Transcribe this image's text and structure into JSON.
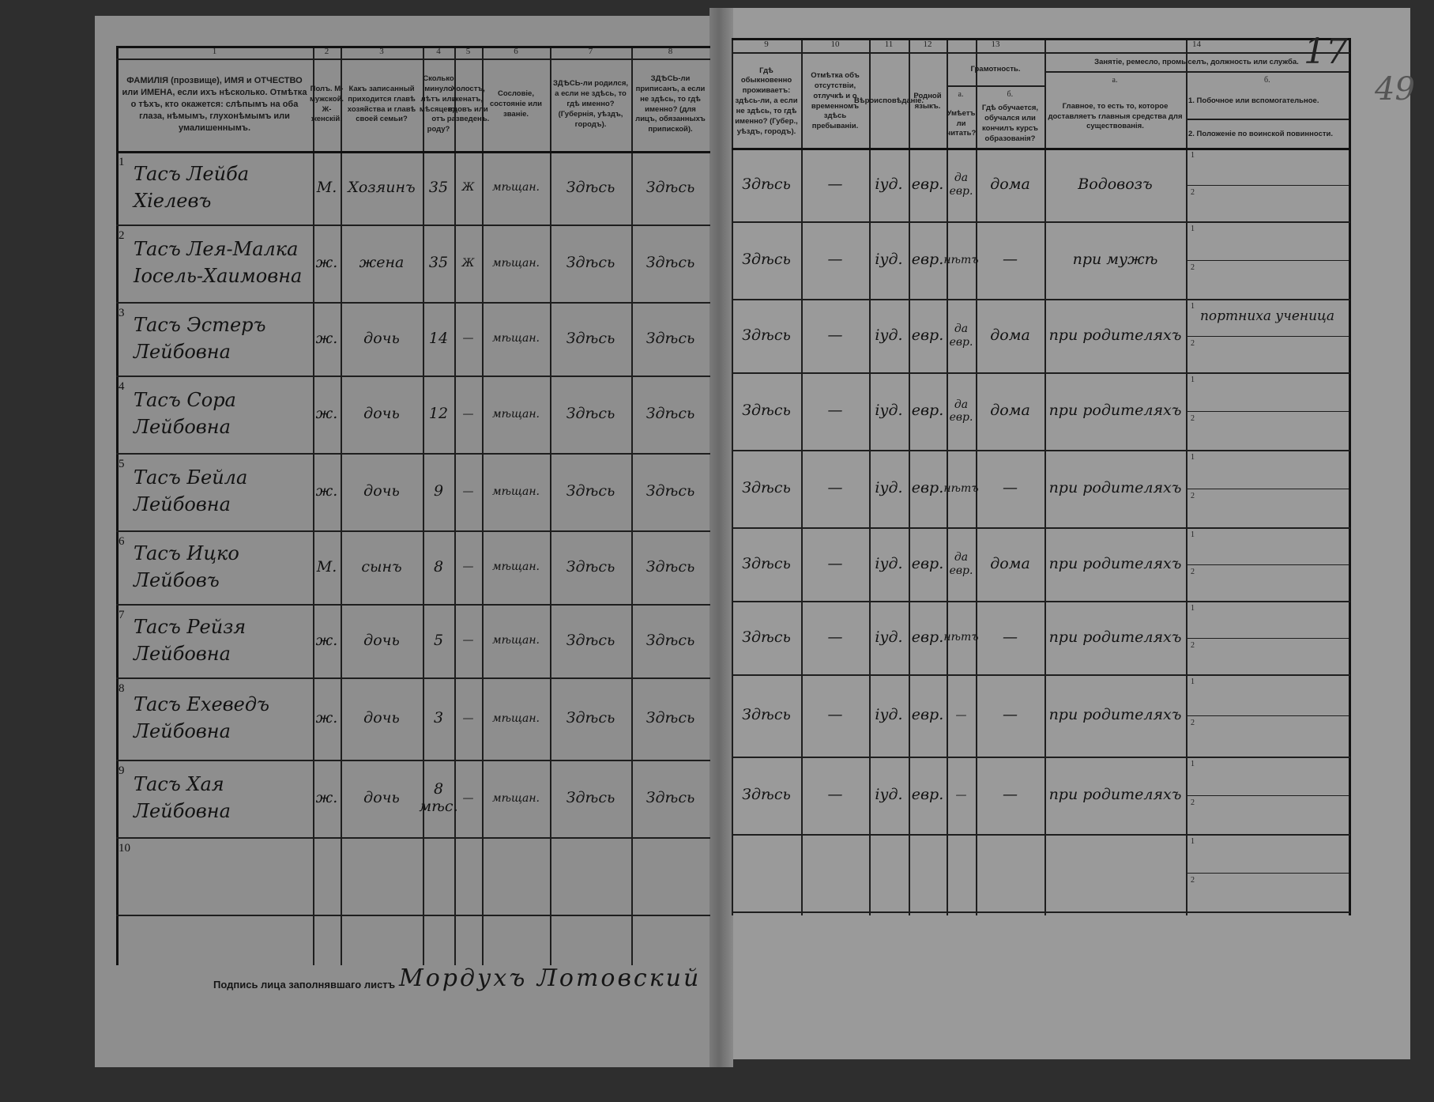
{
  "document": {
    "page_number": "17",
    "pencil_number": "49",
    "signature_label": "Подпись лица заполнявшаго листъ",
    "signature": "Мордухъ Лотовский"
  },
  "headers": [
    {
      "num": "1",
      "text": "ФАМИЛІЯ (прозвище), ИМЯ и ОТЧЕСТВО или ИМЕНА, если ихъ нѣсколько. Отмѣтка о тѣхъ, кто окажется: слѣпымъ на оба глаза, нѣмымъ, глухонѣмымъ или умалишеннымъ."
    },
    {
      "num": "2",
      "text": "Полъ. М-мужской. Ж-женскій."
    },
    {
      "num": "3",
      "text": "Какъ записанный приходится главѣ хозяйства и главѣ своей семьи?"
    },
    {
      "num": "4",
      "text": "Сколько минуло лѣтъ или мѣсяцевъ отъ роду?"
    },
    {
      "num": "5",
      "text": "Холостъ, женатъ, вдовъ или разведенъ."
    },
    {
      "num": "6",
      "text": "Сословіе, состояніе или званіе."
    },
    {
      "num": "7",
      "text": "ЗДѢСЬ-ли родился, а если не здѣсь, то гдѣ именно? (Губернія, уѣздъ, городъ)."
    },
    {
      "num": "8",
      "text": "ЗДѢСЬ-ли приписанъ, а если не здѣсь, то гдѣ именно? (для лицъ, обязанныхъ припиской)."
    },
    {
      "num": "9",
      "text": "Гдѣ обыкновенно проживаетъ: здѣсь-ли, а если не здѣсь, то гдѣ именно? (Губер., уѣздъ, городъ)."
    },
    {
      "num": "10",
      "text": "Отмѣтка объ отсутствіи, отлучкѣ и о временномъ здѣсь пребываніи."
    },
    {
      "num": "11",
      "text": "Вѣроисповѣданіе."
    },
    {
      "num": "12",
      "text": "Родной языкъ."
    },
    {
      "num": "13",
      "group": "Грамотность.",
      "a_letter": "а.",
      "a_text": "Умѣетъ ли читать?",
      "b_letter": "б.",
      "b_text": "Гдѣ обучается, обучался или кончилъ курсъ образованія?"
    },
    {
      "num": "14",
      "group": "Занятіе, ремесло, промыселъ, должность или служба.",
      "a_letter": "а.",
      "a_text": "Главное, то есть то, которое доставляетъ главныя средства для существованія.",
      "b_letter": "б.",
      "b_text1": "1. Побочное или вспомогательное.",
      "b_text2": "2. Положеніе по воинской повинности."
    }
  ],
  "rows": [
    {
      "n": "1",
      "name": "Тасъ Лейба Хіелевъ",
      "sex": "М.",
      "relation": "Хозяинъ",
      "age": "35",
      "marital": "Ж",
      "estate": "мѣщан.",
      "born": "Здѣсь",
      "registered": "Здѣсь",
      "resides": "Здѣсь",
      "absence": "—",
      "religion": "іуд.",
      "language": "евр.",
      "reads": "да евр.",
      "school": "дома",
      "occupation": "Водовозъ",
      "secondary": ""
    },
    {
      "n": "2",
      "name": "Тасъ Лея-Малка Іосель-Хаимовна",
      "sex": "ж.",
      "relation": "жена",
      "age": "35",
      "marital": "Ж",
      "estate": "мѣщан.",
      "born": "Здѣсь",
      "registered": "Здѣсь",
      "resides": "Здѣсь",
      "absence": "—",
      "religion": "іуд.",
      "language": "евр.",
      "reads": "нѣтъ",
      "school": "—",
      "occupation": "при мужѣ",
      "secondary": ""
    },
    {
      "n": "3",
      "name": "Тасъ Эстеръ Лейбовна",
      "sex": "ж.",
      "relation": "дочь",
      "age": "14",
      "marital": "—",
      "estate": "мѣщан.",
      "born": "Здѣсь",
      "registered": "Здѣсь",
      "resides": "Здѣсь",
      "absence": "—",
      "religion": "іуд.",
      "language": "евр.",
      "reads": "да евр.",
      "school": "дома",
      "occupation": "при родителяхъ",
      "secondary": "портниха ученица"
    },
    {
      "n": "4",
      "name": "Тасъ Сора Лейбовна",
      "sex": "ж.",
      "relation": "дочь",
      "age": "12",
      "marital": "—",
      "estate": "мѣщан.",
      "born": "Здѣсь",
      "registered": "Здѣсь",
      "resides": "Здѣсь",
      "absence": "—",
      "religion": "іуд.",
      "language": "евр.",
      "reads": "да евр.",
      "school": "дома",
      "occupation": "при родителяхъ",
      "secondary": ""
    },
    {
      "n": "5",
      "name": "Тасъ Бейла Лейбовна",
      "sex": "ж.",
      "relation": "дочь",
      "age": "9",
      "marital": "—",
      "estate": "мѣщан.",
      "born": "Здѣсь",
      "registered": "Здѣсь",
      "resides": "Здѣсь",
      "absence": "—",
      "religion": "іуд.",
      "language": "евр.",
      "reads": "нѣтъ",
      "school": "—",
      "occupation": "при родителяхъ",
      "secondary": ""
    },
    {
      "n": "6",
      "name": "Тасъ Ицко Лейбовъ",
      "sex": "М.",
      "relation": "сынъ",
      "age": "8",
      "marital": "—",
      "estate": "мѣщан.",
      "born": "Здѣсь",
      "registered": "Здѣсь",
      "resides": "Здѣсь",
      "absence": "—",
      "religion": "іуд.",
      "language": "евр.",
      "reads": "да евр.",
      "school": "дома",
      "occupation": "при родителяхъ",
      "secondary": ""
    },
    {
      "n": "7",
      "name": "Тасъ Рейзя Лейбовна",
      "sex": "ж.",
      "relation": "дочь",
      "age": "5",
      "marital": "—",
      "estate": "мѣщан.",
      "born": "Здѣсь",
      "registered": "Здѣсь",
      "resides": "Здѣсь",
      "absence": "—",
      "religion": "іуд.",
      "language": "евр.",
      "reads": "нѣтъ",
      "school": "—",
      "occupation": "при родителяхъ",
      "secondary": ""
    },
    {
      "n": "8",
      "name": "Тасъ Ехеведъ Лейбовна",
      "sex": "ж.",
      "relation": "дочь",
      "age": "3",
      "marital": "—",
      "estate": "мѣщан.",
      "born": "Здѣсь",
      "registered": "Здѣсь",
      "resides": "Здѣсь",
      "absence": "—",
      "religion": "іуд.",
      "language": "евр.",
      "reads": "—",
      "school": "—",
      "occupation": "при родителяхъ",
      "secondary": ""
    },
    {
      "n": "9",
      "name": "Тасъ Хая Лейбовна",
      "sex": "ж.",
      "relation": "дочь",
      "age": "8 мѣс.",
      "marital": "—",
      "estate": "мѣщан.",
      "born": "Здѣсь",
      "registered": "Здѣсь",
      "resides": "Здѣсь",
      "absence": "—",
      "religion": "іуд.",
      "language": "евр.",
      "reads": "—",
      "school": "—",
      "occupation": "при родителяхъ",
      "secondary": ""
    },
    {
      "n": "10",
      "name": "",
      "sex": "",
      "relation": "",
      "age": "",
      "marital": "",
      "estate": "",
      "born": "",
      "registered": "",
      "resides": "",
      "absence": "",
      "religion": "",
      "language": "",
      "reads": "",
      "school": "",
      "occupation": "",
      "secondary": ""
    }
  ],
  "sub_line_labels": [
    "1",
    "2"
  ]
}
